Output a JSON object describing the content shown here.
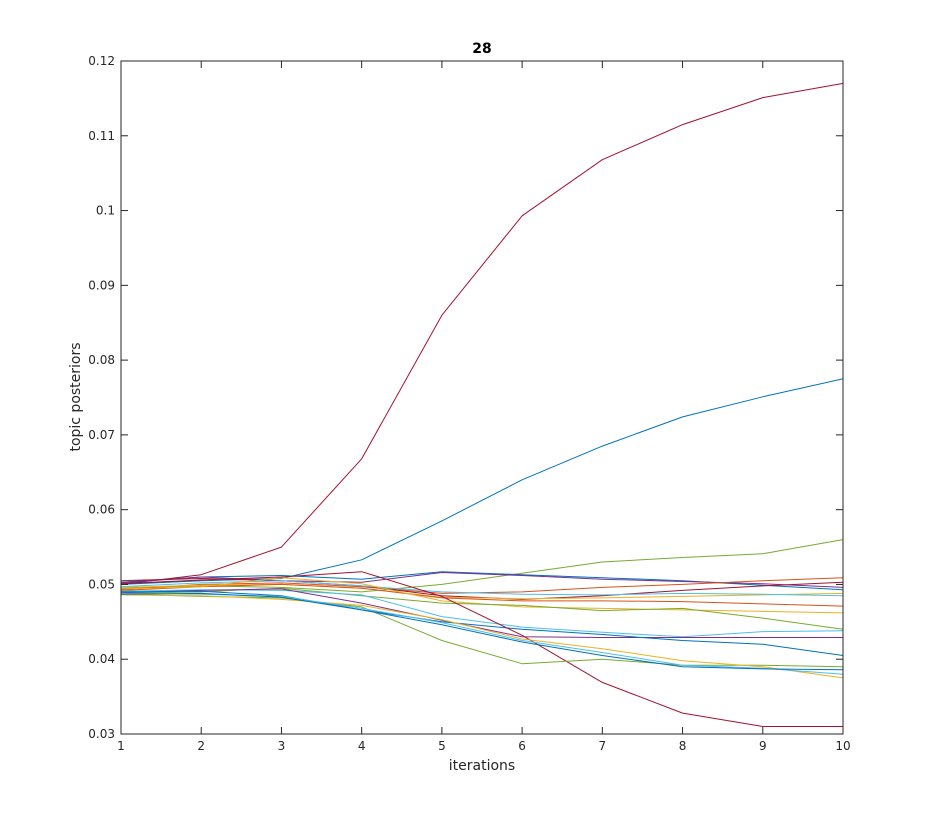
{
  "chart_data": {
    "type": "line",
    "title": "28",
    "xlabel": "iterations",
    "ylabel": "topic posteriors",
    "xlim": [
      1,
      10
    ],
    "ylim": [
      0.03,
      0.12
    ],
    "xticks": [
      1,
      2,
      3,
      4,
      5,
      6,
      7,
      8,
      9,
      10
    ],
    "xtick_labels": [
      "1",
      "2",
      "3",
      "4",
      "5",
      "6",
      "7",
      "8",
      "9",
      "10"
    ],
    "yticks": [
      0.03,
      0.04,
      0.05,
      0.06,
      0.07,
      0.08,
      0.09,
      0.1,
      0.11,
      0.12
    ],
    "ytick_labels": [
      "0.03",
      "0.04",
      "0.05",
      "0.06",
      "0.07",
      "0.08",
      "0.09",
      "0.1",
      "0.11",
      "0.12"
    ],
    "grid": false,
    "legend": "none",
    "x": [
      1,
      2,
      3,
      4,
      5,
      6,
      7,
      8,
      9,
      10
    ],
    "series": [
      {
        "color": "#A2142F",
        "values": [
          0.05,
          0.0513,
          0.055,
          0.0668,
          0.086,
          0.0993,
          0.1068,
          0.1115,
          0.1151,
          0.117
        ]
      },
      {
        "color": "#0072BD",
        "values": [
          0.05,
          0.0505,
          0.0508,
          0.0533,
          0.0585,
          0.064,
          0.0685,
          0.0724,
          0.0751,
          0.0775
        ]
      },
      {
        "color": "#77AC30",
        "values": [
          0.0495,
          0.0498,
          0.0496,
          0.049,
          0.05,
          0.0515,
          0.053,
          0.0536,
          0.0541,
          0.056
        ]
      },
      {
        "color": "#0072BD",
        "values": [
          0.0503,
          0.051,
          0.0512,
          0.0507,
          0.0517,
          0.0513,
          0.0509,
          0.0505,
          0.0499,
          0.0493
        ]
      },
      {
        "color": "#7E2F8E",
        "values": [
          0.0502,
          0.051,
          0.0505,
          0.0503,
          0.0516,
          0.0512,
          0.0507,
          0.0504,
          0.0501,
          0.0496
        ]
      },
      {
        "color": "#D95319",
        "values": [
          0.0493,
          0.05,
          0.0502,
          0.0497,
          0.0488,
          0.049,
          0.0496,
          0.05,
          0.0505,
          0.0509
        ]
      },
      {
        "color": "#A2142F",
        "values": [
          0.0505,
          0.0508,
          0.0505,
          0.0498,
          0.0485,
          0.048,
          0.0485,
          0.0492,
          0.0498,
          0.0503
        ]
      },
      {
        "color": "#EDB120",
        "values": [
          0.0496,
          0.0499,
          0.05,
          0.0495,
          0.0483,
          0.0481,
          0.0482,
          0.0484,
          0.0486,
          0.0488
        ]
      },
      {
        "color": "#4DBEEE",
        "values": [
          0.0497,
          0.0502,
          0.0505,
          0.0498,
          0.049,
          0.0487,
          0.0486,
          0.0488,
          0.0487,
          0.0485
        ]
      },
      {
        "color": "#D95319",
        "values": [
          0.0492,
          0.0497,
          0.05,
          0.0495,
          0.0482,
          0.0478,
          0.0478,
          0.0477,
          0.0474,
          0.0471
        ]
      },
      {
        "color": "#EDB120",
        "values": [
          0.0494,
          0.0497,
          0.0509,
          0.0501,
          0.0478,
          0.047,
          0.0468,
          0.0466,
          0.0464,
          0.0462
        ]
      },
      {
        "color": "#77AC30",
        "values": [
          0.0488,
          0.049,
          0.0495,
          0.0485,
          0.0475,
          0.0472,
          0.0465,
          0.0468,
          0.0455,
          0.044
        ]
      },
      {
        "color": "#4DBEEE",
        "values": [
          0.0491,
          0.0493,
          0.0492,
          0.0486,
          0.0457,
          0.0443,
          0.0436,
          0.043,
          0.0437,
          0.0438
        ]
      },
      {
        "color": "#7E2F8E",
        "values": [
          0.0489,
          0.0492,
          0.0494,
          0.0475,
          0.0452,
          0.043,
          0.0429,
          0.0429,
          0.0429,
          0.0429
        ]
      },
      {
        "color": "#0072BD",
        "values": [
          0.049,
          0.0491,
          0.0485,
          0.0466,
          0.045,
          0.044,
          0.0433,
          0.0425,
          0.042,
          0.0405
        ]
      },
      {
        "color": "#A2142F",
        "values": [
          0.0501,
          0.0506,
          0.051,
          0.0517,
          0.0484,
          0.0432,
          0.0369,
          0.0328,
          0.031,
          0.031
        ]
      },
      {
        "color": "#77AC30",
        "values": [
          0.0487,
          0.0484,
          0.0482,
          0.047,
          0.0425,
          0.0394,
          0.04,
          0.0392,
          0.0392,
          0.039
        ]
      },
      {
        "color": "#EDB120",
        "values": [
          0.0486,
          0.0485,
          0.048,
          0.0472,
          0.0453,
          0.0427,
          0.0414,
          0.0398,
          0.039,
          0.0375
        ]
      },
      {
        "color": "#4DBEEE",
        "values": [
          0.0488,
          0.0487,
          0.0484,
          0.0468,
          0.0449,
          0.0425,
          0.0409,
          0.0392,
          0.0388,
          0.038
        ]
      },
      {
        "color": "#0072BD",
        "values": [
          0.0487,
          0.0488,
          0.0483,
          0.0466,
          0.0446,
          0.0423,
          0.0405,
          0.039,
          0.0387,
          0.0386
        ]
      }
    ]
  }
}
